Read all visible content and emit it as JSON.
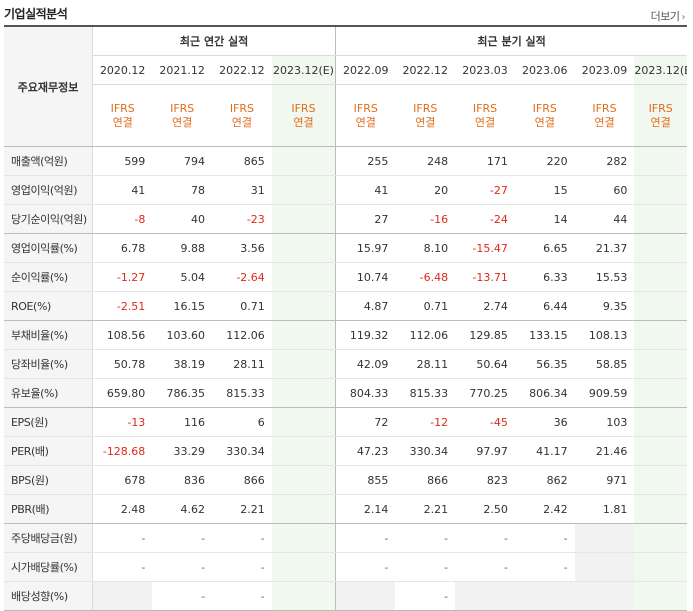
{
  "header": {
    "title": "기업실적분석",
    "more_label": "더보기"
  },
  "table": {
    "label_header": "주요재무정보",
    "annual_group": "최근 연간 실적",
    "quarter_group": "최근 분기 실적",
    "annual_periods": [
      "2020.12",
      "2021.12",
      "2022.12",
      "2023.12(E)"
    ],
    "quarter_periods": [
      "2022.09",
      "2022.12",
      "2023.03",
      "2023.06",
      "2023.09",
      "2023.12(E)"
    ],
    "basis_line1": "IFRS",
    "basis_line2": "연결",
    "estimate_label": "(E)",
    "rows": [
      {
        "label": "매출액(억원)",
        "annual": [
          "599",
          "794",
          "865",
          ""
        ],
        "quarter": [
          "255",
          "248",
          "171",
          "220",
          "282",
          ""
        ]
      },
      {
        "label": "영업이익(억원)",
        "annual": [
          "41",
          "78",
          "31",
          ""
        ],
        "quarter": [
          "41",
          "20",
          "-27",
          "15",
          "60",
          ""
        ]
      },
      {
        "label": "당기순이익(억원)",
        "annual": [
          "-8",
          "40",
          "-23",
          ""
        ],
        "quarter": [
          "27",
          "-16",
          "-24",
          "14",
          "44",
          ""
        ]
      },
      {
        "label": "영업이익률(%)",
        "annual": [
          "6.78",
          "9.88",
          "3.56",
          ""
        ],
        "quarter": [
          "15.97",
          "8.10",
          "-15.47",
          "6.65",
          "21.37",
          ""
        ]
      },
      {
        "label": "순이익률(%)",
        "annual": [
          "-1.27",
          "5.04",
          "-2.64",
          ""
        ],
        "quarter": [
          "10.74",
          "-6.48",
          "-13.71",
          "6.33",
          "15.53",
          ""
        ]
      },
      {
        "label": "ROE(%)",
        "annual": [
          "-2.51",
          "16.15",
          "0.71",
          ""
        ],
        "quarter": [
          "4.87",
          "0.71",
          "2.74",
          "6.44",
          "9.35",
          ""
        ]
      },
      {
        "label": "부채비율(%)",
        "annual": [
          "108.56",
          "103.60",
          "112.06",
          ""
        ],
        "quarter": [
          "119.32",
          "112.06",
          "129.85",
          "133.15",
          "108.13",
          ""
        ]
      },
      {
        "label": "당좌비율(%)",
        "annual": [
          "50.78",
          "38.19",
          "28.11",
          ""
        ],
        "quarter": [
          "42.09",
          "28.11",
          "50.64",
          "56.35",
          "58.85",
          ""
        ]
      },
      {
        "label": "유보율(%)",
        "annual": [
          "659.80",
          "786.35",
          "815.33",
          ""
        ],
        "quarter": [
          "804.33",
          "815.33",
          "770.25",
          "806.34",
          "909.59",
          ""
        ]
      },
      {
        "label": "EPS(원)",
        "annual": [
          "-13",
          "116",
          "6",
          ""
        ],
        "quarter": [
          "72",
          "-12",
          "-45",
          "36",
          "103",
          ""
        ]
      },
      {
        "label": "PER(배)",
        "annual": [
          "-128.68",
          "33.29",
          "330.34",
          ""
        ],
        "quarter": [
          "47.23",
          "330.34",
          "97.97",
          "41.17",
          "21.46",
          ""
        ]
      },
      {
        "label": "BPS(원)",
        "annual": [
          "678",
          "836",
          "866",
          ""
        ],
        "quarter": [
          "855",
          "866",
          "823",
          "862",
          "971",
          ""
        ]
      },
      {
        "label": "PBR(배)",
        "annual": [
          "2.48",
          "4.62",
          "2.21",
          ""
        ],
        "quarter": [
          "2.14",
          "2.21",
          "2.50",
          "2.42",
          "1.81",
          ""
        ]
      },
      {
        "label": "주당배당금(원)",
        "annual": [
          "-",
          "-",
          "-",
          ""
        ],
        "quarter": [
          "-",
          "-",
          "-",
          "-",
          "",
          ""
        ]
      },
      {
        "label": "시가배당률(%)",
        "annual": [
          "-",
          "-",
          "-",
          ""
        ],
        "quarter": [
          "-",
          "-",
          "-",
          "-",
          "",
          ""
        ]
      },
      {
        "label": "배당성향(%)",
        "annual": [
          "",
          "-",
          "-",
          ""
        ],
        "quarter": [
          "",
          "-",
          "",
          "",
          "",
          ""
        ]
      }
    ]
  },
  "colors": {
    "negative": "#e0291b",
    "basis": "#e16d1a",
    "estimate_bg": "#f1f8ef",
    "label_bg": "#f5f5f5"
  }
}
